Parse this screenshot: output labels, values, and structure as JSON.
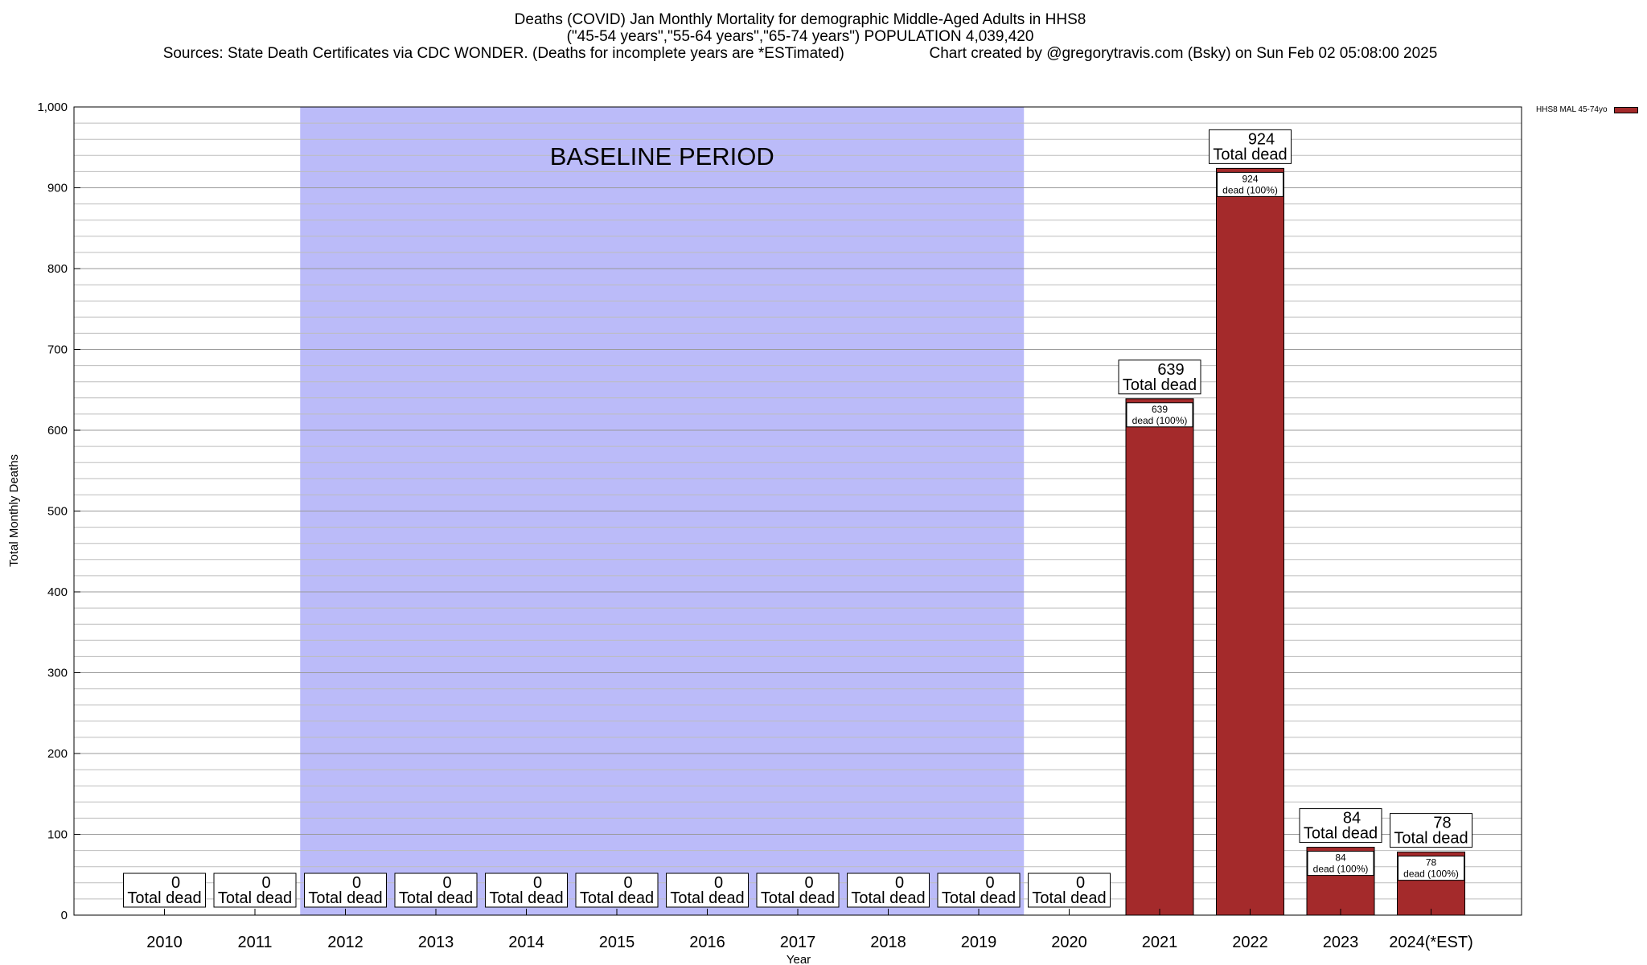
{
  "title": {
    "line1": "Deaths (COVID) Jan Monthly Mortality for demographic Middle-Aged Adults in HHS8",
    "line2": "(\"45-54 years\",\"55-64 years\",\"65-74 years\") POPULATION 4,039,420",
    "line3_left": "Sources: State Death Certificates via CDC WONDER. (Deaths for incomplete years are *ESTimated)",
    "line3_right": "Chart created by @gregorytravis.com (Bsky) on Sun Feb 02 05:08:00 2025"
  },
  "legend": {
    "label": "HHS8 MAL 45-74yo"
  },
  "chart_data": {
    "type": "bar",
    "title": "Deaths (COVID) Jan Monthly Mortality for demographic Middle-Aged Adults in HHS8",
    "xlabel": "Year",
    "ylabel": "Total Monthly Deaths",
    "ylim": [
      0,
      1000
    ],
    "yticks": [
      0,
      100,
      200,
      300,
      400,
      500,
      600,
      700,
      800,
      900,
      1000
    ],
    "ytick_labels": [
      "0",
      "100",
      "200",
      "300",
      "400",
      "500",
      "600",
      "700",
      "800",
      "900",
      "1,000"
    ],
    "categories": [
      "2010",
      "2011",
      "2012",
      "2013",
      "2014",
      "2015",
      "2016",
      "2017",
      "2018",
      "2019",
      "2020",
      "2021",
      "2022",
      "2023",
      "2024(*EST)"
    ],
    "values": [
      0,
      0,
      0,
      0,
      0,
      0,
      0,
      0,
      0,
      0,
      0,
      639,
      924,
      84,
      78
    ],
    "series": [
      {
        "name": "HHS8 MAL 45-74yo",
        "values": [
          0,
          0,
          0,
          0,
          0,
          0,
          0,
          0,
          0,
          0,
          0,
          639,
          924,
          84,
          78
        ]
      }
    ],
    "total_label": "Total dead",
    "inner_label": "dead (100%)",
    "baseline": {
      "label": "BASELINE PERIOD",
      "start_category": "2012",
      "end_category": "2019"
    },
    "colors": {
      "bar": "#a42a2b",
      "baseline": "#bbbbf9",
      "grid": "#bdbdbd"
    }
  }
}
